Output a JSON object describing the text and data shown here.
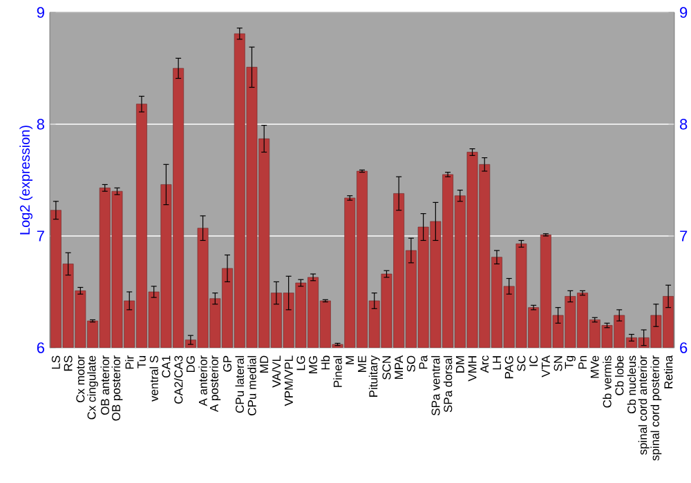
{
  "chart_data": {
    "type": "bar",
    "ylabel": "Log2 (expression)",
    "categories": [
      "LS",
      "RS",
      "Cx motor",
      "Cx cingulate",
      "OB anterior",
      "OB posterior",
      "Pir",
      "Tu",
      "ventral S",
      "CA1",
      "CA2/CA3",
      "DG",
      "A anterior",
      "A posterior",
      "GP",
      "CPu lateral",
      "CPu medial",
      "MD",
      "VA/VL",
      "VPM/VPL",
      "LG",
      "MG",
      "Hb",
      "Pineal",
      "M",
      "ME",
      "Pituitary",
      "SCN",
      "MPA",
      "SO",
      "Pa",
      "SPa ventral",
      "SPa dorsal",
      "DM",
      "VMH",
      "Arc",
      "LH",
      "PAG",
      "SC",
      "IC",
      "VTA",
      "SN",
      "Tg",
      "Pn",
      "MVe",
      "Cb vermis",
      "Cb lobe",
      "Cb nucleus",
      "spinal cord anterior",
      "spinal cord posterior",
      "Retina"
    ],
    "values": [
      7.23,
      6.75,
      6.51,
      6.24,
      7.43,
      7.4,
      6.42,
      8.18,
      6.5,
      7.46,
      8.5,
      6.07,
      7.07,
      6.44,
      6.71,
      8.81,
      8.51,
      7.87,
      6.49,
      6.49,
      6.58,
      6.63,
      6.42,
      6.03,
      7.34,
      7.58,
      6.42,
      6.66,
      7.38,
      6.87,
      7.08,
      7.13,
      7.55,
      7.36,
      7.75,
      7.64,
      6.81,
      6.55,
      6.93,
      6.36,
      7.01,
      6.29,
      6.46,
      6.49,
      6.25,
      6.2,
      6.29,
      6.09,
      6.09,
      6.29,
      6.46
    ],
    "errors": [
      0.08,
      0.1,
      0.03,
      0.01,
      0.03,
      0.03,
      0.08,
      0.07,
      0.05,
      0.18,
      0.09,
      0.04,
      0.11,
      0.05,
      0.12,
      0.05,
      0.18,
      0.12,
      0.1,
      0.15,
      0.03,
      0.03,
      0.01,
      0.01,
      0.02,
      0.01,
      0.07,
      0.03,
      0.15,
      0.11,
      0.12,
      0.17,
      0.02,
      0.05,
      0.03,
      0.06,
      0.06,
      0.07,
      0.03,
      0.02,
      0.01,
      0.07,
      0.05,
      0.02,
      0.02,
      0.02,
      0.05,
      0.03,
      0.07,
      0.1,
      0.1
    ],
    "color": "#b83a3a",
    "ylim": [
      6,
      9
    ],
    "yticks": [
      6,
      7,
      8,
      9
    ],
    "y2lim": [
      6,
      9
    ],
    "y2ticks": [
      6,
      7,
      8,
      9
    ],
    "grid": "y"
  }
}
